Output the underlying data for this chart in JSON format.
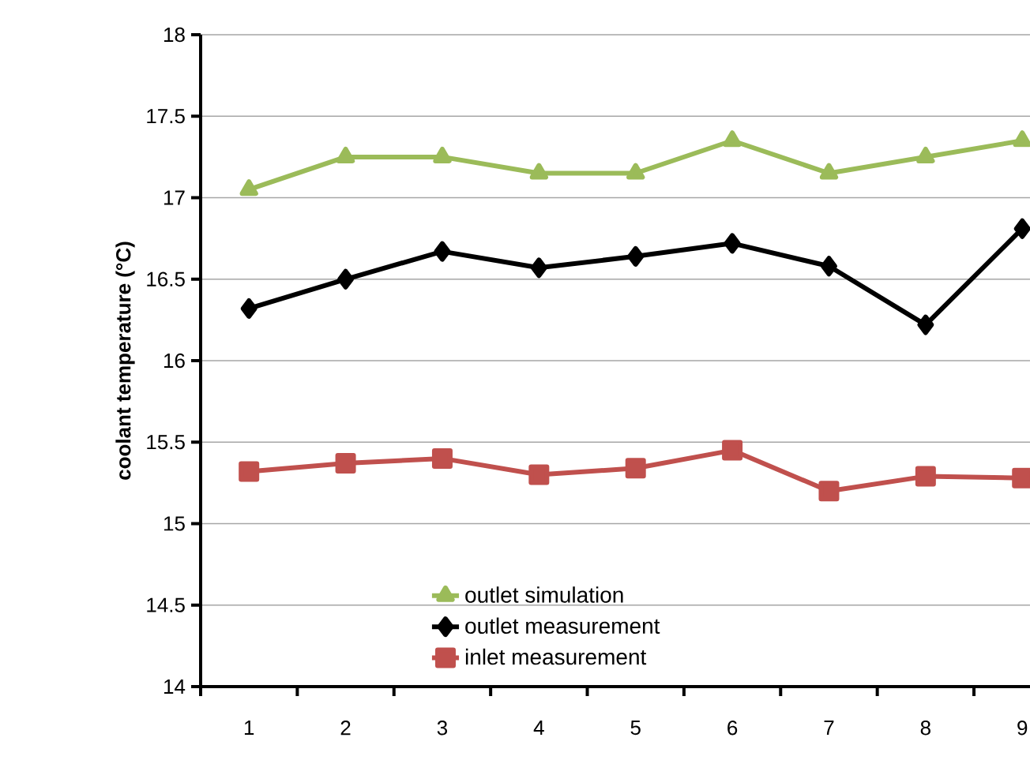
{
  "chart_data": {
    "type": "line",
    "ylabel": "coolant temperature (°C)",
    "categories": [
      "1",
      "2",
      "3",
      "4",
      "5",
      "6",
      "7",
      "8",
      "9"
    ],
    "series": [
      {
        "name": "outlet simulation",
        "color": "#9bbb59",
        "marker": "triangle",
        "values": [
          17.05,
          17.25,
          17.25,
          17.15,
          17.15,
          17.35,
          17.15,
          17.25,
          17.35
        ]
      },
      {
        "name": "outlet measurement",
        "color": "#000000",
        "marker": "diamond",
        "values": [
          16.32,
          16.5,
          16.67,
          16.57,
          16.64,
          16.72,
          16.58,
          16.22,
          16.81
        ]
      },
      {
        "name": "inlet measurement",
        "color": "#c0504d",
        "marker": "square",
        "values": [
          15.32,
          15.37,
          15.4,
          15.3,
          15.34,
          15.45,
          15.2,
          15.29,
          15.28
        ]
      }
    ],
    "ylim": [
      14,
      18
    ],
    "yticks": [
      14,
      14.5,
      15,
      15.5,
      16,
      16.5,
      17,
      17.5,
      18
    ],
    "grid": "y",
    "legend": "bottom",
    "line_style": "solid"
  }
}
